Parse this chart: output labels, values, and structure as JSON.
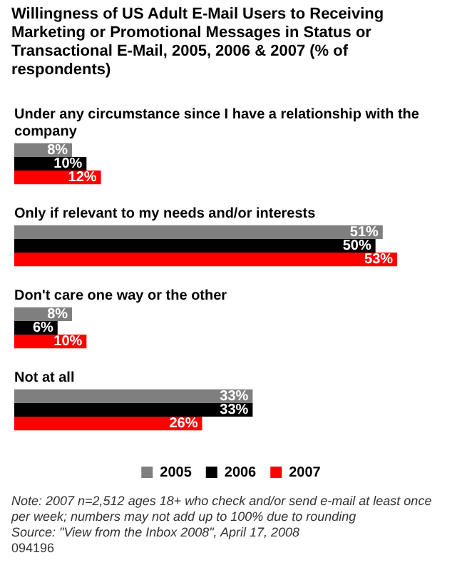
{
  "chart_data": {
    "type": "bar",
    "orientation": "horizontal",
    "title": "Willingness of US Adult E-Mail Users to Receiving Marketing or Promotional Messages in Status or Transactional E-Mail, 2005, 2006 & 2007 (% of respondents)",
    "categories": [
      "Under any circumstance since I have a relationship with the company",
      "Only if relevant to my needs and/or interests",
      "Don't care one way or the other",
      "Not at all"
    ],
    "series": [
      {
        "name": "2005",
        "color": "#7f7f7f",
        "values": [
          8,
          51,
          8,
          33
        ],
        "value_labels": [
          "8%",
          "51%",
          "8%",
          "33%"
        ]
      },
      {
        "name": "2006",
        "color": "#000000",
        "values": [
          10,
          50,
          6,
          33
        ],
        "value_labels": [
          "10%",
          "50%",
          "6%",
          "33%"
        ]
      },
      {
        "name": "2007",
        "color": "#ff0000",
        "values": [
          12,
          53,
          10,
          26
        ],
        "value_labels": [
          "12%",
          "53%",
          "10%",
          "26%"
        ]
      }
    ],
    "legend": "bottom",
    "annotations": [
      "Note: 2007 n=2,512 ages 18+ who check and/or send e-mail at least once per week; numbers may not add up to 100% due to rounding",
      "Source: \"View from the Inbox 2008\", April 17, 2008",
      "094196"
    ]
  }
}
